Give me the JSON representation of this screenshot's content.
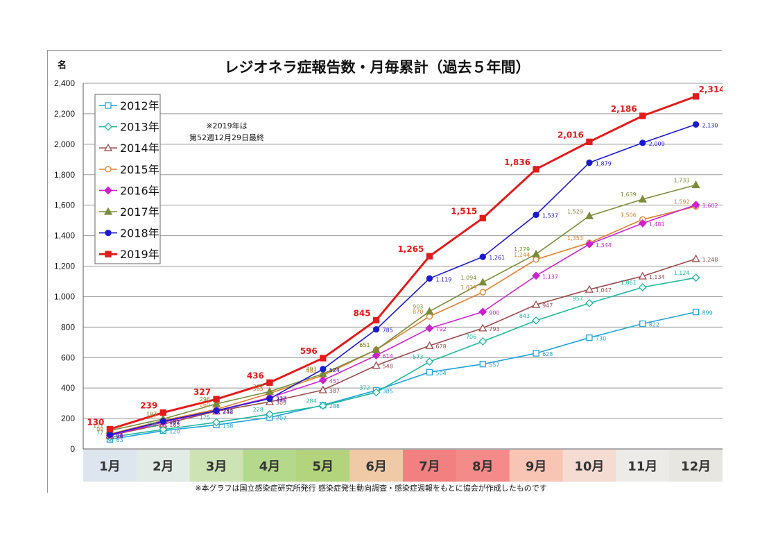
{
  "chart_data": {
    "type": "line",
    "title": "レジオネラ症報告数・月毎累計（過去５年間）",
    "ylabel": "名",
    "ylim": [
      0,
      2400
    ],
    "yticks": [
      "0",
      "200",
      "400",
      "600",
      "800",
      "1,000",
      "1,200",
      "1,400",
      "1,600",
      "1,800",
      "2,000",
      "2,200",
      "2,400"
    ],
    "categories": [
      "1月",
      "2月",
      "3月",
      "4月",
      "5月",
      "6月",
      "7月",
      "8月",
      "9月",
      "10月",
      "11月",
      "12月"
    ],
    "grid": true,
    "legend_position": "top-left",
    "note": "※2019年は\n第52週12月29日最終",
    "footnote": "※本グラフは国立感染症研究所発行 感染症発生動向調査・感染症週報をもとに協会が作成したものです",
    "series": [
      {
        "name": "2012年",
        "color": "#1fa3d8",
        "marker": "square-open",
        "values": [
          63,
          120,
          158,
          207,
          288,
          385,
          504,
          557,
          628,
          730,
          822,
          899
        ],
        "labels": [
          "63",
          "120",
          "158",
          "207",
          "288",
          "385",
          "504",
          "557",
          "628",
          "730",
          "822",
          "899"
        ]
      },
      {
        "name": "2013年",
        "color": "#1db89d",
        "marker": "diamond-open",
        "values": [
          77,
          128,
          175,
          228,
          284,
          372,
          573,
          706,
          843,
          957,
          1061,
          1124
        ],
        "labels": [
          "77",
          "128",
          "175",
          "228",
          "284",
          "372",
          "573",
          "706",
          "843",
          "957",
          "1,061",
          "1,124"
        ]
      },
      {
        "name": "2014年",
        "color": "#9a4a4a",
        "marker": "triangle-open",
        "values": [
          89,
          163,
          248,
          309,
          387,
          548,
          678,
          793,
          947,
          1047,
          1134,
          1248
        ],
        "labels": [
          "89",
          "163",
          "248",
          "309",
          "387",
          "548",
          "678",
          "793",
          "947",
          "1,047",
          "1,134",
          "1,248"
        ]
      },
      {
        "name": "2015年",
        "color": "#e07d2a",
        "marker": "circle-open",
        "values": [
          98,
          187,
          260,
          365,
          483,
          651,
          870,
          1029,
          1244,
          1353,
          1506,
          1592
        ],
        "labels": [
          "98",
          "187",
          "260",
          "365",
          "483",
          "651",
          "870",
          "1,029",
          "1,244",
          "1,353",
          "1,506",
          "1,592"
        ]
      },
      {
        "name": "2016年",
        "color": "#cc22cc",
        "marker": "diamond",
        "values": [
          90,
          175,
          252,
          337,
          451,
          614,
          792,
          900,
          1137,
          1344,
          1481,
          1602
        ],
        "labels": [
          "90",
          "175",
          "252",
          "337",
          "451",
          "614",
          "792",
          "900",
          "1,137",
          "1,344",
          "1,481",
          "1,602"
        ]
      },
      {
        "name": "2017年",
        "color": "#7a8c3a",
        "marker": "triangle",
        "values": [
          121,
          197,
          296,
          377,
          493,
          651,
          903,
          1094,
          1279,
          1529,
          1639,
          1733
        ],
        "labels": [
          "121",
          "197",
          "296",
          "377",
          "493",
          "651",
          "903",
          "1,094",
          "1,279",
          "1,529",
          "1,639",
          "1,733"
        ]
      },
      {
        "name": "2018年",
        "color": "#1a1ad0",
        "marker": "circle",
        "values": [
          94,
          182,
          252,
          330,
          524,
          785,
          1119,
          1261,
          1537,
          1879,
          2009,
          2130
        ],
        "labels": [
          "94",
          "182",
          "252",
          "330",
          "524",
          "785",
          "1,119",
          "1,261",
          "1,537",
          "1,879",
          "2,009",
          "2,130"
        ]
      },
      {
        "name": "2019年",
        "color": "#e31a1a",
        "marker": "square",
        "values": [
          130,
          239,
          327,
          436,
          596,
          845,
          1265,
          1515,
          1836,
          2016,
          2186,
          2314
        ],
        "labels": [
          "130",
          "239",
          "327",
          "436",
          "596",
          "845",
          "1,265",
          "1,515",
          "1,836",
          "2,016",
          "2,186",
          "2,314"
        ]
      }
    ],
    "month_band_colors": [
      "#dde6ef",
      "#e3ebe6",
      "#cde3b4",
      "#b4d98c",
      "#b3d37c",
      "#f0c9a6",
      "#f28080",
      "#f48a8a",
      "#f8c4b4",
      "#f5dcd2",
      "#ecebe8",
      "#e8e6e1"
    ]
  }
}
